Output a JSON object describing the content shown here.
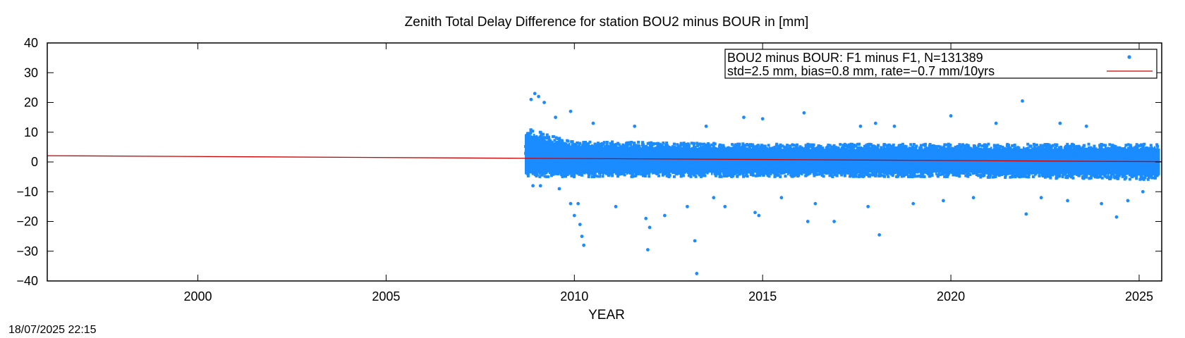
{
  "chart_data": {
    "type": "scatter",
    "title": "Zenith Total Delay Difference for station BOU2 minus BOUR in [mm]",
    "xlabel": "YEAR",
    "ylabel": "",
    "xlim": [
      1996.0,
      2025.6
    ],
    "ylim": [
      -40,
      40
    ],
    "xticks": [
      2000,
      2005,
      2010,
      2015,
      2020,
      2025
    ],
    "yticks": [
      40,
      30,
      20,
      10,
      0,
      -10,
      -20,
      -30,
      -40
    ],
    "grid": false,
    "legend_position": "top-right",
    "legend": {
      "line1": "BOU2 minus BOUR: F1 minus F1, N=131389",
      "line2": "std=2.5 mm, bias=0.8 mm, rate=−0.7 mm/10yrs"
    },
    "series": [
      {
        "kind": "points",
        "color": "#1a8cff",
        "x_range": [
          2008.7,
          2025.5
        ],
        "n": 131389,
        "std": 2.5,
        "bias": 0.8,
        "band": [
          {
            "x": 2008.8,
            "lo": -5,
            "hi": 12
          },
          {
            "x": 2009.3,
            "lo": -5,
            "hi": 9
          },
          {
            "x": 2010,
            "lo": -5,
            "hi": 7
          },
          {
            "x": 2015,
            "lo": -5,
            "hi": 6
          },
          {
            "x": 2020,
            "lo": -5,
            "hi": 6
          },
          {
            "x": 2025.5,
            "lo": -6,
            "hi": 6
          }
        ],
        "outliers": [
          [
            2008.85,
            21
          ],
          [
            2008.95,
            23
          ],
          [
            2009.05,
            22
          ],
          [
            2009.2,
            20
          ],
          [
            2009.5,
            15
          ],
          [
            2009.9,
            17
          ],
          [
            2008.9,
            -8
          ],
          [
            2009.1,
            -8
          ],
          [
            2009.6,
            -9
          ],
          [
            2009.9,
            -14
          ],
          [
            2010.0,
            -18
          ],
          [
            2010.1,
            -14
          ],
          [
            2010.15,
            -21
          ],
          [
            2010.2,
            -25
          ],
          [
            2010.25,
            -28
          ],
          [
            2010.5,
            13
          ],
          [
            2011.1,
            -15
          ],
          [
            2011.6,
            12
          ],
          [
            2011.9,
            -19
          ],
          [
            2012.0,
            -22
          ],
          [
            2011.95,
            -29.5
          ],
          [
            2012.4,
            -18
          ],
          [
            2013.0,
            -15
          ],
          [
            2013.2,
            -26.5
          ],
          [
            2013.25,
            -37.5
          ],
          [
            2013.5,
            12
          ],
          [
            2013.7,
            -12
          ],
          [
            2014.0,
            -15
          ],
          [
            2014.5,
            15
          ],
          [
            2014.8,
            -17
          ],
          [
            2014.9,
            -18
          ],
          [
            2015.0,
            14.5
          ],
          [
            2015.5,
            -12
          ],
          [
            2016.1,
            16.5
          ],
          [
            2016.2,
            -20
          ],
          [
            2016.4,
            -14
          ],
          [
            2016.9,
            -20
          ],
          [
            2017.6,
            12
          ],
          [
            2017.8,
            -15
          ],
          [
            2018.0,
            13
          ],
          [
            2018.1,
            -24.5
          ],
          [
            2018.5,
            12
          ],
          [
            2019.0,
            -14
          ],
          [
            2019.8,
            -13
          ],
          [
            2020.0,
            15.5
          ],
          [
            2020.6,
            -12
          ],
          [
            2021.2,
            13
          ],
          [
            2021.9,
            20.5
          ],
          [
            2022.0,
            -17.5
          ],
          [
            2022.4,
            -12
          ],
          [
            2022.9,
            13
          ],
          [
            2023.1,
            -13
          ],
          [
            2023.6,
            12
          ],
          [
            2024.0,
            -14
          ],
          [
            2024.4,
            -18.5
          ],
          [
            2024.7,
            -13
          ],
          [
            2025.1,
            -10
          ]
        ]
      },
      {
        "kind": "line",
        "color": "#cc0000",
        "x": [
          1996.0,
          2025.6
        ],
        "y": [
          2.1,
          0.1
        ]
      }
    ]
  },
  "footer": {
    "timestamp": "18/07/2025 22:15"
  }
}
